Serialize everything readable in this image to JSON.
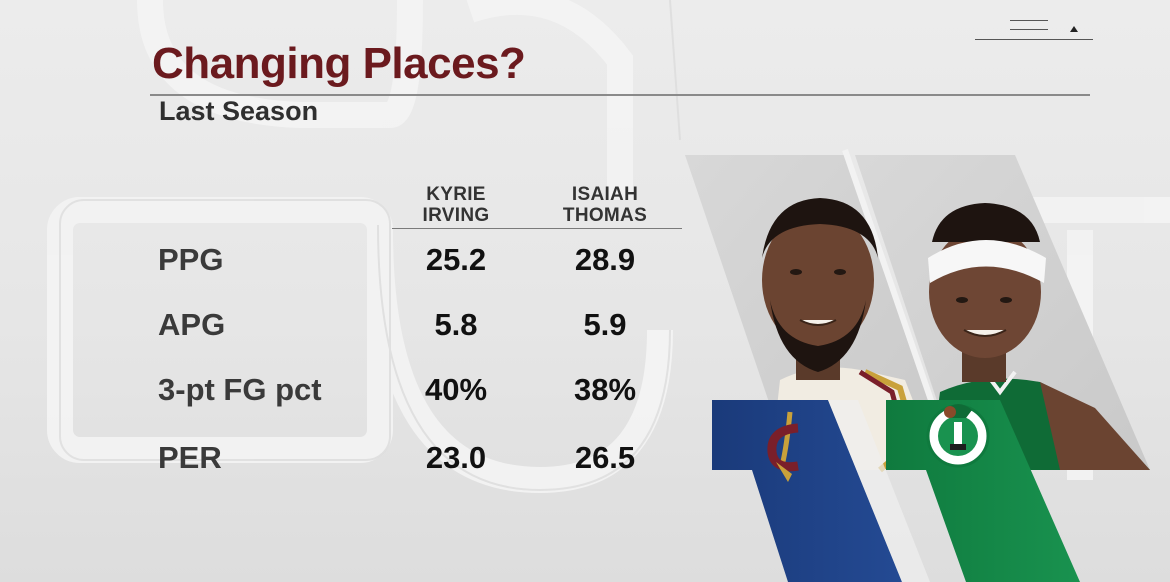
{
  "graphic": {
    "title": "Changing Places?",
    "subtitle": "Last Season"
  },
  "columns": [
    {
      "line1": "KYRIE",
      "line2": "IRVING",
      "team_logo": "cavaliers-logo-icon",
      "team_color": "#1d3f82"
    },
    {
      "line1": "ISAIAH",
      "line2": "THOMAS",
      "team_logo": "celtics-logo-icon",
      "team_color": "#14884a"
    }
  ],
  "rows": [
    {
      "label": "PPG",
      "values": [
        "25.2",
        "28.9"
      ]
    },
    {
      "label": "APG",
      "values": [
        "5.8",
        "5.9"
      ]
    },
    {
      "label": "3-pt FG pct",
      "values": [
        "40%",
        "38%"
      ]
    },
    {
      "label": "PER",
      "values": [
        "23.0",
        "26.5"
      ]
    }
  ],
  "colors": {
    "title": "#6b1a1e",
    "background": "#e6e6e6",
    "cavaliers_blue": "#1d3f82",
    "cavaliers_wine": "#7a1f2a",
    "cavaliers_gold": "#c9a13a",
    "celtics_green": "#14884a"
  },
  "icons": [
    "menu-icon",
    "cavaliers-logo-icon",
    "celtics-logo-icon"
  ]
}
